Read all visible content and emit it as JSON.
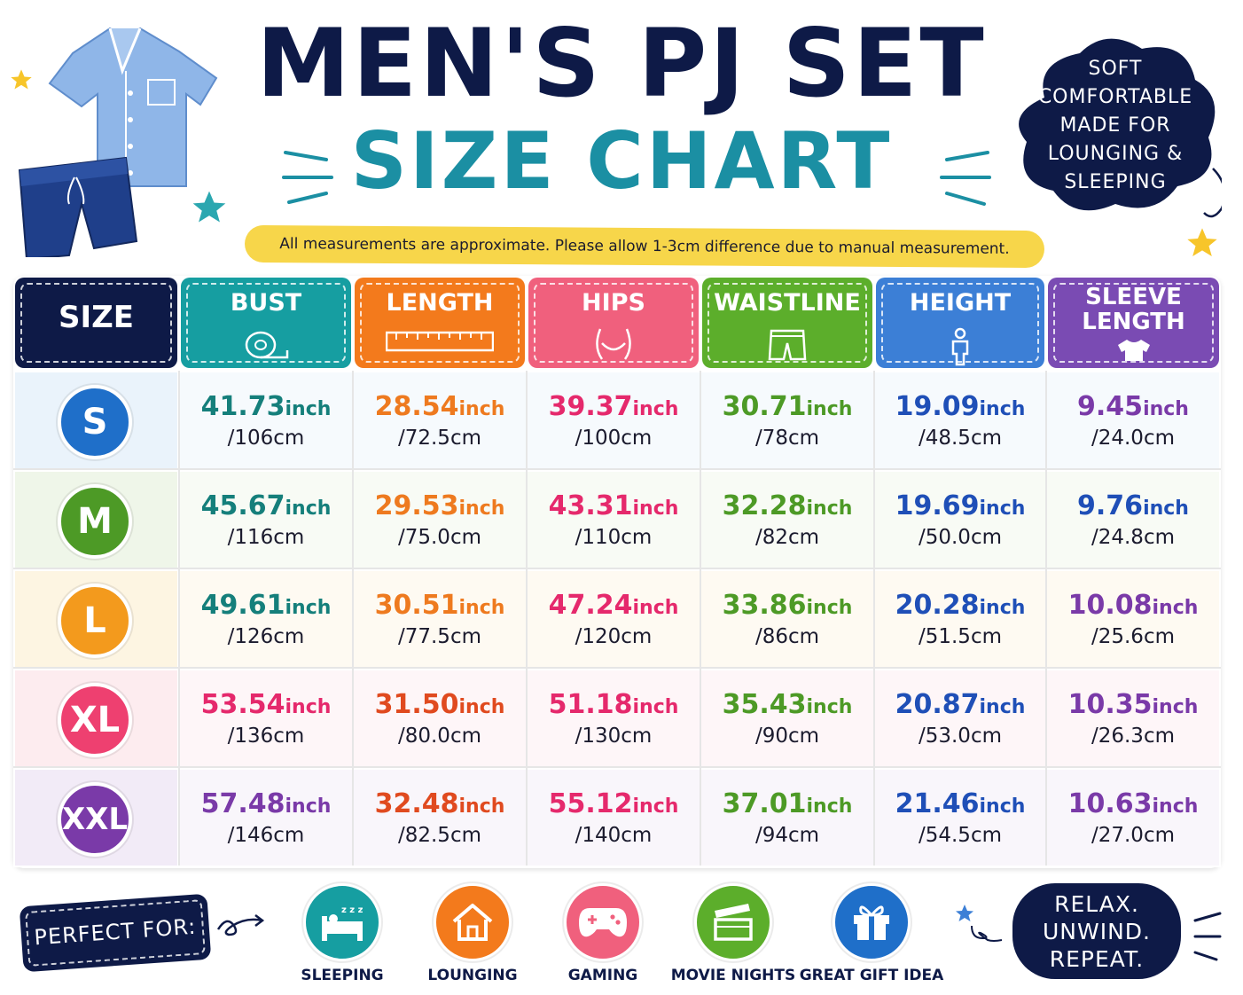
{
  "title": {
    "line1": "MEN'S PJ SET",
    "line2": "SIZE CHART"
  },
  "note": "All measurements are approximate. Please allow 1-3cm difference due to manual measurement.",
  "cloud_text": [
    "SOFT",
    "COMFORTABLE",
    "MADE FOR",
    "LOUNGING &",
    "SLEEPING"
  ],
  "table": {
    "size_header": "SIZE",
    "columns": [
      {
        "label": "BUST",
        "color": "#169ea1",
        "icon": "measuring-tape-icon"
      },
      {
        "label": "LENGTH",
        "color": "#f37a1c",
        "icon": "ruler-icon"
      },
      {
        "label": "HIPS",
        "color": "#f0607d",
        "icon": "hips-icon"
      },
      {
        "label": "WAISTLINE",
        "color": "#5cae2b",
        "icon": "shorts-icon"
      },
      {
        "label": "HEIGHT",
        "color": "#3c7fd6",
        "icon": "person-icon"
      },
      {
        "label": "SLEEVE LENGTH",
        "color": "#7a4bb3",
        "icon": "tshirt-icon"
      }
    ],
    "inch_unit": "inch",
    "value_colors": {
      "S": [
        "#157f7b",
        "#ee7a1f",
        "#e5296c",
        "#4d9a26",
        "#1f4fb7",
        "#7a3aa8"
      ],
      "M": [
        "#157f7b",
        "#ee7a1f",
        "#e5296c",
        "#4d9a26",
        "#1f4fb7",
        "#1f4fb7"
      ],
      "L": [
        "#157f7b",
        "#ee7a1f",
        "#e5296c",
        "#4d9a26",
        "#1f4fb7",
        "#7a3aa8"
      ],
      "XL": [
        "#e5296c",
        "#e04a1f",
        "#e5296c",
        "#4d9a26",
        "#1f4fb7",
        "#7a3aa8"
      ],
      "XXL": [
        "#7a3aa8",
        "#e04a1f",
        "#e5296c",
        "#4d9a26",
        "#1f4fb7",
        "#7a3aa8"
      ]
    },
    "rows": [
      {
        "size": "S",
        "badge_color": "#1f6fc9",
        "row_bg": "#eaf3fb",
        "values": [
          [
            "41.73",
            "/106cm"
          ],
          [
            "28.54",
            "/72.5cm"
          ],
          [
            "39.37",
            "/100cm"
          ],
          [
            "30.71",
            "/78cm"
          ],
          [
            "19.09",
            "/48.5cm"
          ],
          [
            "9.45",
            "/24.0cm"
          ]
        ]
      },
      {
        "size": "M",
        "badge_color": "#4d9a26",
        "row_bg": "#eff6e9",
        "values": [
          [
            "45.67",
            "/116cm"
          ],
          [
            "29.53",
            "/75.0cm"
          ],
          [
            "43.31",
            "/110cm"
          ],
          [
            "32.28",
            "/82cm"
          ],
          [
            "19.69",
            "/50.0cm"
          ],
          [
            "9.76",
            "/24.8cm"
          ]
        ]
      },
      {
        "size": "L",
        "badge_color": "#f39a1d",
        "row_bg": "#fdf5e2",
        "values": [
          [
            "49.61",
            "/126cm"
          ],
          [
            "30.51",
            "/77.5cm"
          ],
          [
            "47.24",
            "/120cm"
          ],
          [
            "33.86",
            "/86cm"
          ],
          [
            "20.28",
            "/51.5cm"
          ],
          [
            "10.08",
            "/25.6cm"
          ]
        ]
      },
      {
        "size": "XL",
        "badge_color": "#ee4070",
        "row_bg": "#fdecef",
        "values": [
          [
            "53.54",
            "/136cm"
          ],
          [
            "31.50",
            "/80.0cm"
          ],
          [
            "51.18",
            "/130cm"
          ],
          [
            "35.43",
            "/90cm"
          ],
          [
            "20.87",
            "/53.0cm"
          ],
          [
            "10.35",
            "/26.3cm"
          ]
        ]
      },
      {
        "size": "XXL",
        "badge_color": "#7a3aa8",
        "row_bg": "#f2ebf7",
        "values": [
          [
            "57.48",
            "/146cm"
          ],
          [
            "32.48",
            "/82.5cm"
          ],
          [
            "55.12",
            "/140cm"
          ],
          [
            "37.01",
            "/94cm"
          ],
          [
            "21.46",
            "/54.5cm"
          ],
          [
            "10.63",
            "/27.0cm"
          ]
        ]
      }
    ]
  },
  "footer": {
    "perfect_for": "PERFECT FOR:",
    "uses": [
      {
        "label": "SLEEPING",
        "color": "#169ea1",
        "icon": "bed-icon"
      },
      {
        "label": "LOUNGING",
        "color": "#f37a1c",
        "icon": "house-icon"
      },
      {
        "label": "GAMING",
        "color": "#f0607d",
        "icon": "gamepad-icon"
      },
      {
        "label": "MOVIE NIGHTS",
        "color": "#5cae2b",
        "icon": "clapperboard-icon"
      },
      {
        "label": "GREAT GIFT IDEA",
        "color": "#1f6fc9",
        "icon": "gift-icon"
      }
    ],
    "slogan": [
      "RELAX.",
      "UNWIND.",
      "REPEAT."
    ]
  }
}
